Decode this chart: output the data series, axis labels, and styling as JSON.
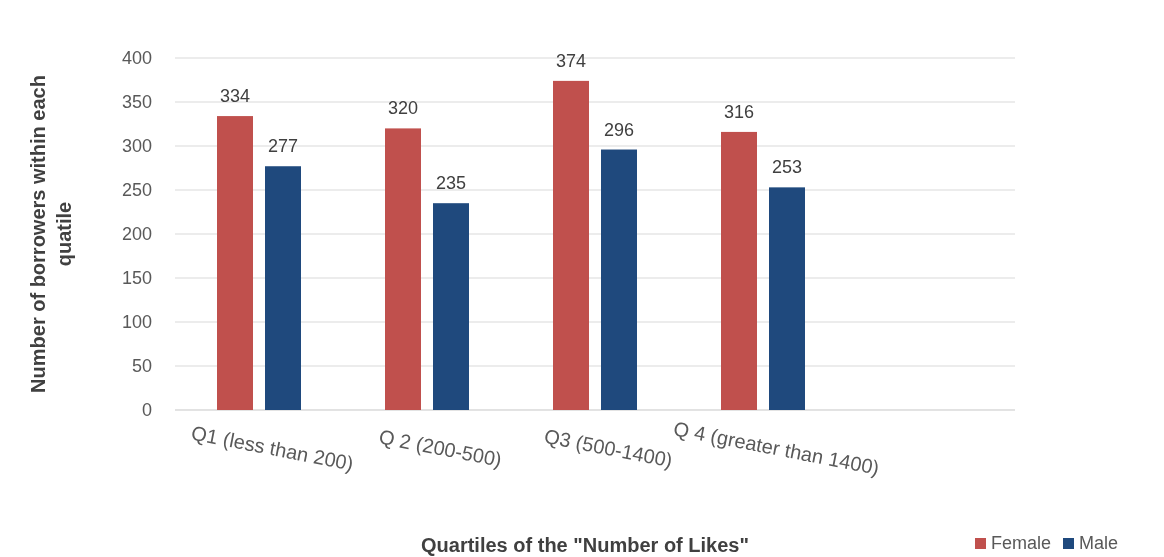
{
  "chart_data": {
    "type": "bar",
    "xlabel": "Quartiles of the \"Number of Likes\"",
    "ylabel": "Number of borrowers within each quatile",
    "categories": [
      "Q1 (less than 200)",
      "Q 2 (200-500)",
      "Q3 (500-1400)",
      "Q 4 (greater than 1400)",
      null
    ],
    "series": [
      {
        "name": "Female",
        "color": "#c0504d",
        "values": [
          334,
          320,
          374,
          316,
          null
        ]
      },
      {
        "name": "Male",
        "color": "#1f497d",
        "values": [
          277,
          235,
          296,
          253,
          null
        ]
      }
    ],
    "ylim": [
      0,
      400
    ],
    "yticks": [
      0,
      50,
      100,
      150,
      200,
      250,
      300,
      350,
      400
    ],
    "grid": "y",
    "data_labels": true,
    "legend": "bottom right"
  }
}
